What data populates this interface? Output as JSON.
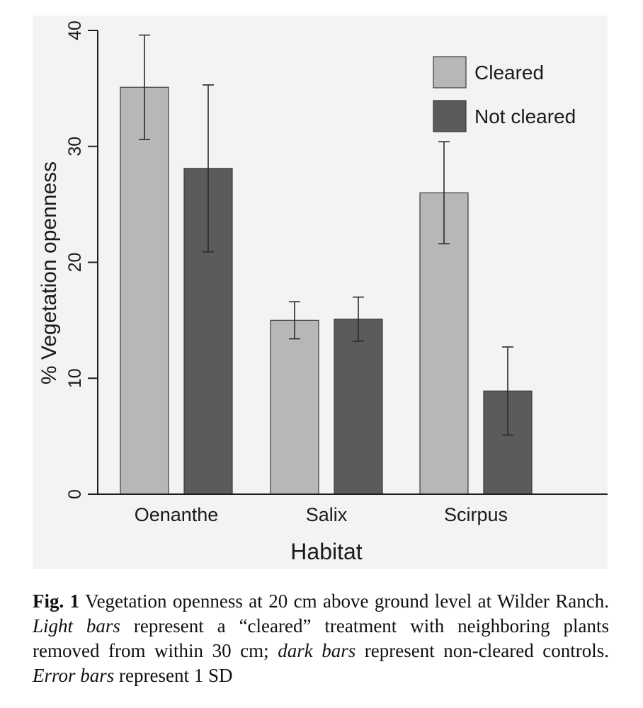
{
  "colors": {
    "cleared": "#b7b7b7",
    "not_cleared": "#5b5b5b",
    "axis": "#1f1f1f",
    "panel_background": "#f3f3f3"
  },
  "chart_data": {
    "type": "bar",
    "xlabel": "Habitat",
    "ylabel": "% Vegetation openness",
    "ylim": [
      0,
      40
    ],
    "yticks": [
      0,
      10,
      20,
      30,
      40
    ],
    "categories": [
      "Oenanthe",
      "Salix",
      "Scirpus"
    ],
    "series": [
      {
        "name": "Cleared",
        "values": [
          35.1,
          15.0,
          26.0
        ],
        "sd": [
          4.5,
          1.6,
          4.4
        ]
      },
      {
        "name": "Not cleared",
        "values": [
          28.1,
          15.1,
          8.9
        ],
        "sd": [
          7.2,
          1.9,
          3.8
        ]
      }
    ],
    "legend_position": "top-right",
    "grid": false
  },
  "caption": {
    "label": "Fig. 1",
    "part1": " Vegetation openness at 20 cm above ground level at Wilder Ranch. ",
    "light_bars": "Light bars",
    "part2": " represent a “cleared” treatment with neighboring plants removed from within 30 cm; ",
    "dark_bars": "dark bars",
    "part3": " represent non-cleared controls. ",
    "error_bars": "Error bars",
    "part4": " represent 1 SD"
  }
}
